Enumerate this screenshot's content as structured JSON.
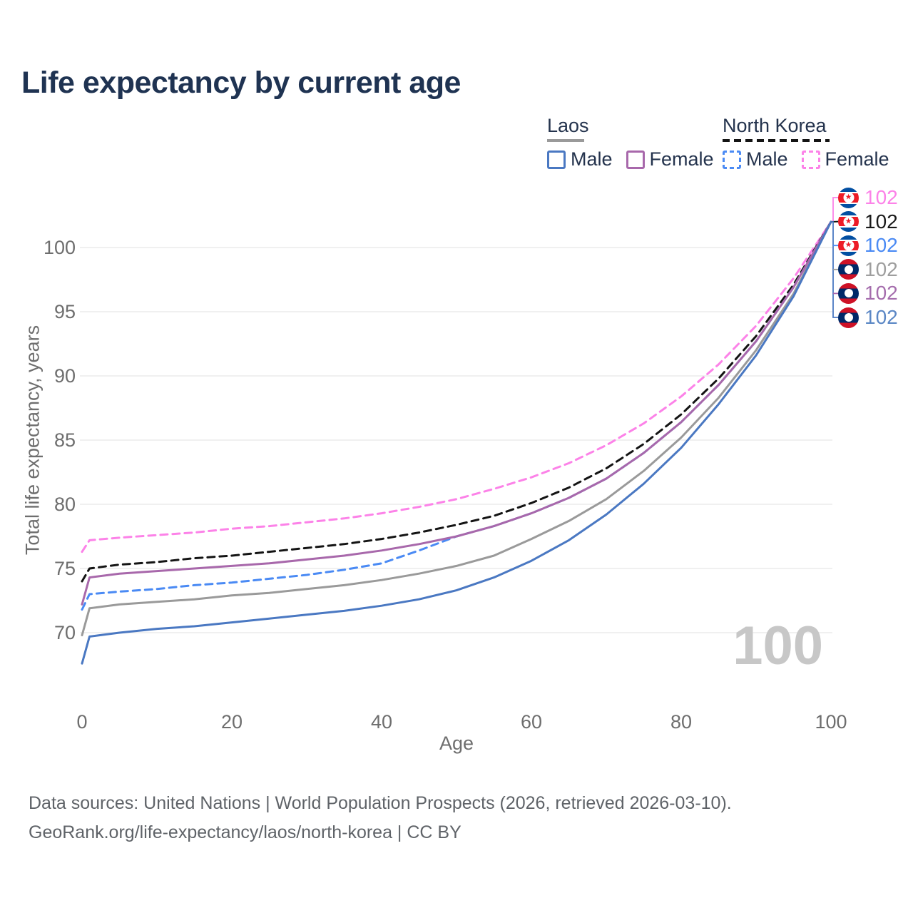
{
  "title": "Life expectancy by current age",
  "legend": {
    "groups": [
      {
        "label": "Laos",
        "line_style": "solid",
        "underline_color": "#9a9a9a",
        "items": [
          {
            "label": "Male",
            "color": "#4a78c2"
          },
          {
            "label": "Female",
            "color": "#a868ab"
          }
        ]
      },
      {
        "label": "North Korea",
        "line_style": "dashed",
        "underline_color": "#141414",
        "items": [
          {
            "label": "Male",
            "color": "#4a8af4"
          },
          {
            "label": "Female",
            "color": "#fc82e8"
          }
        ]
      }
    ]
  },
  "chart_data": {
    "type": "line",
    "title": "Life expectancy by current age",
    "xlabel": "Age",
    "ylabel": "Total life expectancy, years",
    "xlim": [
      0,
      100
    ],
    "ylim": [
      66,
      103
    ],
    "x_ticks": [
      0,
      20,
      40,
      60,
      80,
      100
    ],
    "y_ticks": [
      70,
      75,
      80,
      85,
      90,
      95,
      100
    ],
    "grid": "horizontal",
    "watermark": "100",
    "x": [
      0,
      1,
      5,
      10,
      15,
      20,
      25,
      30,
      35,
      40,
      45,
      50,
      55,
      60,
      65,
      70,
      75,
      80,
      85,
      90,
      95,
      100
    ],
    "series": [
      {
        "name": "North Korea — Female",
        "country": "North Korea",
        "sex": "Female",
        "flag": "north-korea",
        "color": "#fc82e8",
        "dashed": true,
        "end_value": "102",
        "values": [
          76.3,
          77.2,
          77.4,
          77.6,
          77.8,
          78.1,
          78.3,
          78.6,
          78.9,
          79.3,
          79.8,
          80.4,
          81.2,
          82.1,
          83.2,
          84.6,
          86.3,
          88.4,
          90.9,
          93.9,
          97.6,
          102
        ]
      },
      {
        "name": "North Korea — Both sexes",
        "country": "North Korea",
        "sex": "Both sexes",
        "flag": "north-korea",
        "color": "#141414",
        "dashed": true,
        "end_value": "102",
        "values": [
          74.0,
          75.0,
          75.3,
          75.5,
          75.8,
          76.0,
          76.3,
          76.6,
          76.9,
          77.3,
          77.8,
          78.4,
          79.1,
          80.1,
          81.3,
          82.8,
          84.7,
          87.0,
          89.8,
          93.1,
          97.1,
          102
        ]
      },
      {
        "name": "North Korea — Male",
        "country": "North Korea",
        "sex": "Male",
        "flag": "north-korea",
        "color": "#4a8af4",
        "dashed": true,
        "end_value": "102",
        "values": [
          71.8,
          73.0,
          73.2,
          73.4,
          73.7,
          73.9,
          74.2,
          74.5,
          74.9,
          75.4,
          76.4,
          77.5,
          78.3,
          79.3,
          80.5,
          82.0,
          84.0,
          86.4,
          89.3,
          92.7,
          96.9,
          102
        ]
      },
      {
        "name": "Laos — Both sexes",
        "country": "Laos",
        "sex": "Both sexes",
        "flag": "laos",
        "color": "#9a9a9a",
        "dashed": false,
        "end_value": "102",
        "values": [
          69.8,
          71.9,
          72.2,
          72.4,
          72.6,
          72.9,
          73.1,
          73.4,
          73.7,
          74.1,
          74.6,
          75.2,
          76.0,
          77.3,
          78.7,
          80.4,
          82.6,
          85.2,
          88.3,
          92.0,
          96.4,
          102
        ]
      },
      {
        "name": "Laos — Female",
        "country": "Laos",
        "sex": "Female",
        "flag": "laos",
        "color": "#a868ab",
        "dashed": false,
        "end_value": "102",
        "values": [
          72.2,
          74.3,
          74.6,
          74.8,
          75.0,
          75.2,
          75.4,
          75.7,
          76.0,
          76.4,
          76.9,
          77.5,
          78.3,
          79.3,
          80.5,
          82.0,
          84.0,
          86.4,
          89.3,
          92.7,
          96.9,
          102
        ]
      },
      {
        "name": "Laos — Male",
        "country": "Laos",
        "sex": "Male",
        "flag": "laos",
        "color": "#4a78c2",
        "dashed": false,
        "end_value": "102",
        "values": [
          67.6,
          69.7,
          70.0,
          70.3,
          70.5,
          70.8,
          71.1,
          71.4,
          71.7,
          72.1,
          72.6,
          73.3,
          74.3,
          75.6,
          77.2,
          79.2,
          81.6,
          84.4,
          87.8,
          91.6,
          96.2,
          102
        ]
      }
    ],
    "end_label_text_colors": [
      "#fc82e8",
      "#1a1a1a",
      "#4a8af4",
      "#9e9e9e",
      "#a56dad",
      "#5b87c5"
    ]
  },
  "footer": {
    "line1": "Data sources: United Nations | World Population Prospects (2026, retrieved 2026-03-10).",
    "line2": "GeoRank.org/life-expectancy/laos/north-korea | CC BY"
  }
}
